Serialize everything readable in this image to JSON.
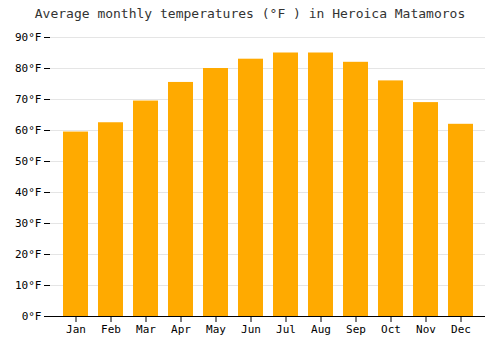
{
  "chart_data": {
    "type": "bar",
    "title": "Average monthly temperatures (°F ) in Heroica Matamoros",
    "categories": [
      "Jan",
      "Feb",
      "Mar",
      "Apr",
      "May",
      "Jun",
      "Jul",
      "Aug",
      "Sep",
      "Oct",
      "Nov",
      "Dec"
    ],
    "values": [
      59.5,
      62.5,
      69.5,
      75.5,
      80.0,
      83.0,
      85.0,
      85.0,
      82.0,
      76.0,
      69.0,
      62.0
    ],
    "color": "#FFAA00",
    "ylim": [
      0,
      90
    ],
    "yticks": [
      {
        "value": 0,
        "label": "0°F"
      },
      {
        "value": 10,
        "label": "10°F"
      },
      {
        "value": 20,
        "label": "20°F"
      },
      {
        "value": 30,
        "label": "30°F"
      },
      {
        "value": 40,
        "label": "40°F"
      },
      {
        "value": 50,
        "label": "50°F"
      },
      {
        "value": 60,
        "label": "60°F"
      },
      {
        "value": 70,
        "label": "70°F"
      },
      {
        "value": 80,
        "label": "80°F"
      },
      {
        "value": 90,
        "label": "90°F"
      }
    ],
    "grid": true
  }
}
